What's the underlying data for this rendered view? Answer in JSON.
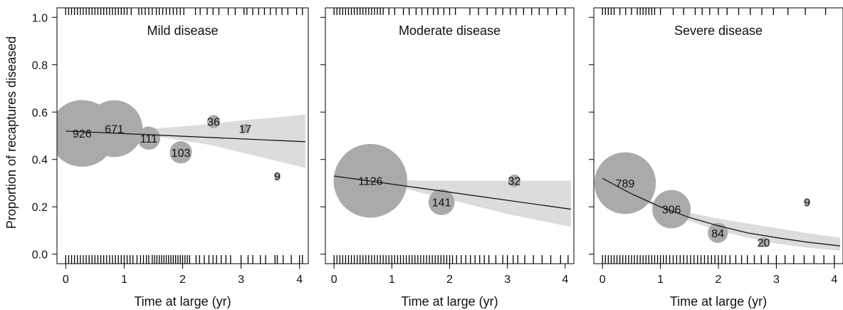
{
  "figure": {
    "ylabel": "Proportion of recaptures diseased"
  },
  "colors": {
    "bubble": "#aaaaaa",
    "band": "#dcdcdc",
    "line": "#1a1a1a",
    "axis": "#000000",
    "text": "#111111"
  },
  "chart_data": [
    {
      "type": "scatter",
      "title": "Mild disease",
      "xlabel": "Time at large (yr)",
      "ylabel": "Proportion of recaptures diseased",
      "xlim": [
        -0.15,
        4.15
      ],
      "ylim": [
        -0.04,
        1.04
      ],
      "xticks": [
        0,
        1,
        2,
        3,
        4
      ],
      "yticks": [
        0.0,
        0.2,
        0.4,
        0.6,
        0.8,
        1.0
      ],
      "xtick_labels": [
        "0",
        "1",
        "2",
        "3",
        "4"
      ],
      "ytick_labels": [
        "0.0",
        "0.2",
        "0.4",
        "0.6",
        "0.8",
        "1.0"
      ],
      "bubbles": [
        {
          "x": 0.28,
          "y": 0.51,
          "n": 926,
          "label": "926"
        },
        {
          "x": 0.83,
          "y": 0.53,
          "n": 671,
          "label": "671"
        },
        {
          "x": 1.42,
          "y": 0.49,
          "n": 111,
          "label": "111"
        },
        {
          "x": 1.97,
          "y": 0.43,
          "n": 103,
          "label": "103"
        },
        {
          "x": 2.53,
          "y": 0.56,
          "n": 36,
          "label": "36"
        },
        {
          "x": 3.07,
          "y": 0.53,
          "n": 17,
          "label": "17"
        },
        {
          "x": 3.62,
          "y": 0.33,
          "n": 9,
          "label": "9"
        }
      ],
      "fit": {
        "x": [
          0,
          4.1
        ],
        "y": [
          0.52,
          0.475
        ]
      },
      "ci_band": {
        "x": [
          0,
          0.5,
          1.0,
          1.5,
          2.0,
          2.5,
          3.0,
          3.5,
          4.1
        ],
        "lower": [
          0.515,
          0.515,
          0.51,
          0.5,
          0.48,
          0.46,
          0.43,
          0.4,
          0.365
        ],
        "upper": [
          0.525,
          0.525,
          0.525,
          0.53,
          0.54,
          0.55,
          0.565,
          0.575,
          0.59
        ]
      },
      "rug_bottom": [
        0,
        0.05,
        0.1,
        0.15,
        0.2,
        0.25,
        0.3,
        0.35,
        0.4,
        0.45,
        0.5,
        0.55,
        0.6,
        0.65,
        0.7,
        0.75,
        0.8,
        0.85,
        0.9,
        0.95,
        1.0,
        1.05,
        1.1,
        1.15,
        1.22,
        1.28,
        1.33,
        1.38,
        1.42,
        1.48,
        1.52,
        1.56,
        1.6,
        1.64,
        1.68,
        1.72,
        1.76,
        1.8,
        1.84,
        1.88,
        1.92,
        1.96,
        2.0,
        2.04,
        2.08,
        2.12,
        2.23,
        2.29,
        2.37,
        2.45,
        2.52,
        2.58,
        2.66,
        2.74,
        2.82,
        3.0,
        3.12,
        3.2,
        3.33,
        3.42,
        3.58,
        3.62,
        3.72,
        3.86,
        4.0,
        4.05
      ],
      "rug_top": [
        0,
        0.05,
        0.1,
        0.15,
        0.2,
        0.25,
        0.3,
        0.35,
        0.4,
        0.45,
        0.5,
        0.55,
        0.6,
        0.65,
        0.7,
        0.75,
        0.8,
        0.85,
        0.9,
        0.95,
        1.0,
        1.05,
        1.12,
        1.25,
        1.3,
        1.36,
        1.42,
        1.48,
        1.55,
        1.6,
        1.66,
        1.72,
        1.78,
        1.84,
        1.9,
        1.96,
        2.02,
        2.22,
        2.3,
        2.42,
        2.52,
        2.62,
        2.78,
        2.9,
        3.05,
        3.1,
        3.2,
        3.3,
        3.4,
        3.5,
        3.6,
        3.7,
        3.8,
        3.95,
        4.05
      ]
    },
    {
      "type": "scatter",
      "title": "Moderate disease",
      "xlabel": "Time at large (yr)",
      "xlim": [
        -0.15,
        4.15
      ],
      "ylim": [
        -0.04,
        1.04
      ],
      "xticks": [
        0,
        1,
        2,
        3,
        4
      ],
      "yticks": [
        0.0,
        0.2,
        0.4,
        0.6,
        0.8,
        1.0
      ],
      "xtick_labels": [
        "0",
        "1",
        "2",
        "3",
        "4"
      ],
      "bubbles": [
        {
          "x": 0.63,
          "y": 0.31,
          "n": 1126,
          "label": "1126"
        },
        {
          "x": 1.86,
          "y": 0.22,
          "n": 141,
          "label": "141"
        },
        {
          "x": 3.12,
          "y": 0.31,
          "n": 32,
          "label": "32"
        }
      ],
      "fit": {
        "x": [
          0,
          4.1
        ],
        "y": [
          0.33,
          0.19
        ]
      },
      "ci_band": {
        "x": [
          0,
          0.5,
          1.0,
          1.5,
          2.0,
          2.5,
          3.0,
          3.5,
          4.1
        ],
        "lower": [
          0.32,
          0.31,
          0.29,
          0.26,
          0.23,
          0.2,
          0.17,
          0.145,
          0.115
        ],
        "upper": [
          0.34,
          0.33,
          0.315,
          0.31,
          0.31,
          0.31,
          0.31,
          0.31,
          0.31
        ]
      },
      "rug_bottom": [
        0,
        0.05,
        0.1,
        0.15,
        0.2,
        0.25,
        0.3,
        0.35,
        0.4,
        0.45,
        0.5,
        0.55,
        0.6,
        0.65,
        0.7,
        0.75,
        0.8,
        0.85,
        0.9,
        0.95,
        1.0,
        1.05,
        1.1,
        1.15,
        1.2,
        1.25,
        1.3,
        1.35,
        1.4,
        1.45,
        1.5,
        1.55,
        1.6,
        1.65,
        1.7,
        1.75,
        1.8,
        1.85,
        1.9,
        1.95,
        2.0,
        2.05,
        2.12,
        2.2,
        2.28,
        2.36,
        2.44,
        2.52,
        2.6,
        2.68,
        2.8,
        2.92,
        3.0,
        3.1,
        3.18,
        3.3,
        3.45,
        3.6,
        3.75,
        3.92,
        4.05
      ],
      "rug_top": [
        0,
        0.05,
        0.1,
        0.15,
        0.2,
        0.25,
        0.3,
        0.35,
        0.4,
        0.45,
        0.5,
        0.55,
        0.6,
        0.65,
        0.7,
        0.75,
        0.8,
        0.85,
        0.95,
        1.05,
        1.2,
        1.3,
        1.42,
        1.52,
        1.62,
        1.72,
        1.8,
        1.9,
        2.0,
        2.1,
        2.35,
        2.5,
        2.65,
        2.8,
        2.92,
        3.05,
        3.15,
        3.28,
        3.42,
        3.55,
        3.7,
        3.85,
        4.0
      ]
    },
    {
      "type": "scatter",
      "title": "Severe disease",
      "xlabel": "Time at large (yr)",
      "xlim": [
        -0.15,
        4.15
      ],
      "ylim": [
        -0.04,
        1.04
      ],
      "xticks": [
        0,
        1,
        2,
        3,
        4
      ],
      "yticks": [
        0.0,
        0.2,
        0.4,
        0.6,
        0.8,
        1.0
      ],
      "xtick_labels": [
        "0",
        "1",
        "2",
        "3",
        "4"
      ],
      "bubbles": [
        {
          "x": 0.39,
          "y": 0.3,
          "n": 789,
          "label": "789"
        },
        {
          "x": 1.19,
          "y": 0.19,
          "n": 306,
          "label": "306"
        },
        {
          "x": 1.99,
          "y": 0.09,
          "n": 84,
          "label": "84"
        },
        {
          "x": 2.78,
          "y": 0.05,
          "n": 20,
          "label": "20"
        },
        {
          "x": 3.53,
          "y": 0.22,
          "n": 9,
          "label": "9"
        }
      ],
      "fit": {
        "x": [
          0,
          0.5,
          1.0,
          1.5,
          2.0,
          2.5,
          3.0,
          3.5,
          4.1
        ],
        "y": [
          0.32,
          0.255,
          0.2,
          0.155,
          0.12,
          0.09,
          0.07,
          0.052,
          0.035
        ]
      },
      "ci_band": {
        "x": [
          0,
          0.5,
          1.0,
          1.5,
          2.0,
          2.5,
          3.0,
          3.5,
          4.1
        ],
        "lower": [
          0.31,
          0.245,
          0.19,
          0.14,
          0.1,
          0.07,
          0.045,
          0.028,
          0.015
        ],
        "upper": [
          0.33,
          0.265,
          0.21,
          0.175,
          0.15,
          0.13,
          0.11,
          0.09,
          0.07
        ]
      },
      "rug_bottom": [
        0,
        0.05,
        0.1,
        0.15,
        0.2,
        0.25,
        0.3,
        0.35,
        0.4,
        0.45,
        0.5,
        0.55,
        0.6,
        0.65,
        0.7,
        0.75,
        0.8,
        0.85,
        0.9,
        0.95,
        1.0,
        1.05,
        1.1,
        1.16,
        1.22,
        1.28,
        1.34,
        1.4,
        1.46,
        1.52,
        1.58,
        1.64,
        1.7,
        1.76,
        1.82,
        1.88,
        1.94,
        2.0,
        2.06,
        2.12,
        2.2,
        2.3,
        2.4,
        2.5,
        2.62,
        2.74,
        2.86,
        3.0,
        3.15,
        3.3,
        3.48,
        3.65,
        3.82,
        4.0
      ],
      "rug_top": [
        0,
        0.05,
        0.1,
        0.15,
        0.2,
        0.3,
        0.4,
        0.5,
        0.6,
        0.65,
        0.7,
        0.75,
        0.8,
        0.85,
        0.9,
        1.0,
        1.22,
        1.4,
        1.6,
        1.72,
        1.85,
        2.0,
        2.15,
        2.35,
        2.55,
        2.75,
        2.95,
        3.2,
        3.5,
        3.85
      ]
    }
  ]
}
